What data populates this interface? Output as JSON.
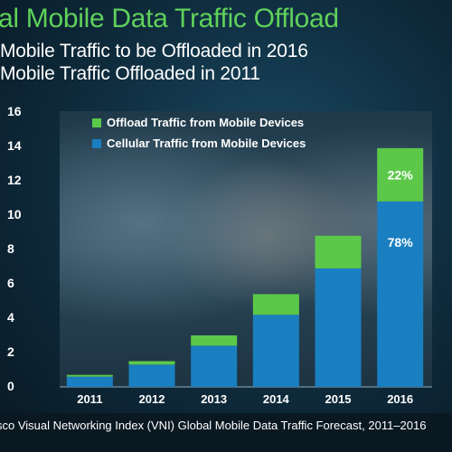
{
  "slide": {
    "title": "al Mobile Data Traffic Offload",
    "subtitle_1": "Mobile Traffic to be Offloaded in 2016",
    "subtitle_2": "Mobile Traffic Offloaded in 2011",
    "footer": "sco Visual Networking Index (VNI) Global Mobile Data Traffic Forecast, 2011–2016"
  },
  "colors": {
    "offload": "#5cc84a",
    "cellular": "#1a7fc1",
    "title": "#5fd15b"
  },
  "chart_data": {
    "type": "bar",
    "stacked": true,
    "ylabel": "",
    "ylim": [
      0,
      16
    ],
    "yticks": [
      "0",
      "2",
      "4",
      "6",
      "8",
      "10",
      "12",
      "14",
      "16"
    ],
    "categories": [
      "2011",
      "2012",
      "2013",
      "2014",
      "2015",
      "2016"
    ],
    "series": [
      {
        "name": "Cellular Traffic from Mobile Devices",
        "values": [
          0.6,
          1.3,
          2.4,
          4.2,
          6.9,
          10.8
        ]
      },
      {
        "name": "Offload Traffic from Mobile Devices",
        "values": [
          0.1,
          0.2,
          0.6,
          1.2,
          1.9,
          3.1
        ]
      }
    ],
    "legend": [
      "Offload Traffic from Mobile Devices",
      "Cellular Traffic from Mobile Devices"
    ],
    "legend_position": "top-left",
    "annotations": [
      {
        "category": "2016",
        "series": "Offload Traffic from Mobile Devices",
        "text": "22%"
      },
      {
        "category": "2016",
        "series": "Cellular Traffic from Mobile Devices",
        "text": "78%"
      }
    ]
  }
}
